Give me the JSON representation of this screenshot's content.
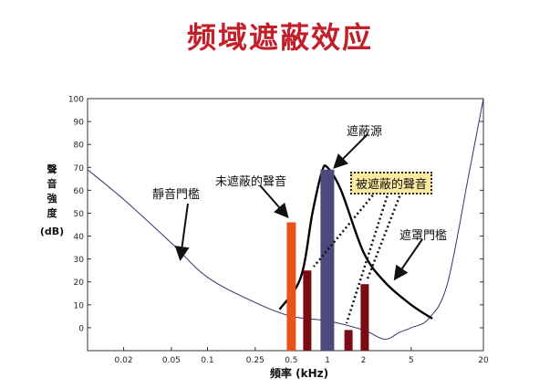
{
  "title": "频域遮蔽效应",
  "chart_data": {
    "type": "line",
    "xscale": "log",
    "xlim": [
      0.01,
      20
    ],
    "ylim": [
      -10,
      100
    ],
    "xticks": [
      {
        "value": 0.02,
        "label": "0.02"
      },
      {
        "value": 0.05,
        "label": "0.05"
      },
      {
        "value": 0.1,
        "label": "0.1"
      },
      {
        "value": 0.25,
        "label": "0.25"
      },
      {
        "value": 0.5,
        "label": "0.5"
      },
      {
        "value": 1,
        "label": "1"
      },
      {
        "value": 2,
        "label": "2"
      },
      {
        "value": 5,
        "label": "5"
      },
      {
        "value": 20,
        "label": "20"
      }
    ],
    "yticks": [
      0,
      10,
      20,
      30,
      40,
      50,
      60,
      70,
      80,
      90,
      100
    ],
    "xlabel": "頻率 (kHz)",
    "ylabel_chars": [
      "聲",
      "音",
      "強",
      "度"
    ],
    "ylabel_unit": "(dB)",
    "threshold_in_quiet": {
      "x": [
        0.01,
        0.02,
        0.05,
        0.1,
        0.25,
        0.5,
        1,
        2,
        3,
        4,
        5,
        7,
        10,
        15,
        20
      ],
      "y": [
        69,
        56,
        37,
        22,
        11,
        5,
        3,
        -1,
        -5,
        -2,
        0,
        4,
        19,
        66,
        100
      ]
    },
    "masking_threshold": {
      "x": [
        0.4,
        0.6,
        0.75,
        0.9,
        1,
        1.3,
        2,
        3,
        5,
        7.5
      ],
      "y": [
        8,
        22,
        50,
        68,
        70,
        60,
        33,
        20,
        10,
        4
      ]
    },
    "bars": [
      {
        "x": 0.5,
        "value": 46,
        "color": "#e8531a",
        "role": "unmasked"
      },
      {
        "x": 0.68,
        "value": 25,
        "color": "#7a0a14",
        "role": "masked"
      },
      {
        "x": 1.0,
        "value": 69,
        "color": "#4b4a7d",
        "role": "masker"
      },
      {
        "x": 1.5,
        "value": -1,
        "color": "#7a0a14",
        "role": "masked"
      },
      {
        "x": 2.05,
        "value": 19,
        "color": "#7a0a14",
        "role": "masked"
      }
    ],
    "annotations": {
      "masker": "遮蔽源",
      "unmasked": "未遮蔽的聲音",
      "masked": "被遮蔽的聲音",
      "quiet_threshold": "靜音門檻",
      "masking_threshold": "遮罩門檻"
    }
  }
}
